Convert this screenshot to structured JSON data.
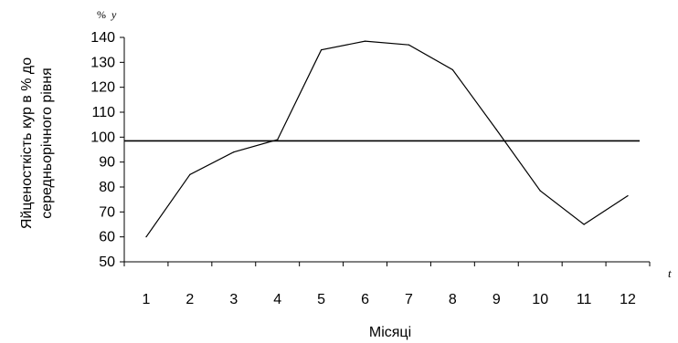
{
  "chart_data": {
    "type": "line",
    "title": "",
    "xlabel": "Місяці",
    "ylabel_line1": "Яйценосткість кур в % до",
    "ylabel_line2": "середньорічного рівня",
    "y_unit": "%",
    "y_axis_symbol": "y",
    "x_axis_symbol": "t",
    "categories": [
      "1",
      "2",
      "3",
      "4",
      "5",
      "6",
      "7",
      "8",
      "9",
      "10",
      "11",
      "12"
    ],
    "series": [
      {
        "values": [
          60,
          85,
          94,
          99,
          135,
          138.5,
          137,
          127,
          103,
          78.5,
          65,
          76.5
        ]
      }
    ],
    "reference_line": 98.5,
    "ylim": [
      50,
      140
    ],
    "yticks": [
      50,
      60,
      70,
      80,
      90,
      100,
      110,
      120,
      130,
      140
    ],
    "grid": false,
    "legend": "none",
    "colors": {
      "line": "#000000",
      "axis": "#000000"
    }
  }
}
